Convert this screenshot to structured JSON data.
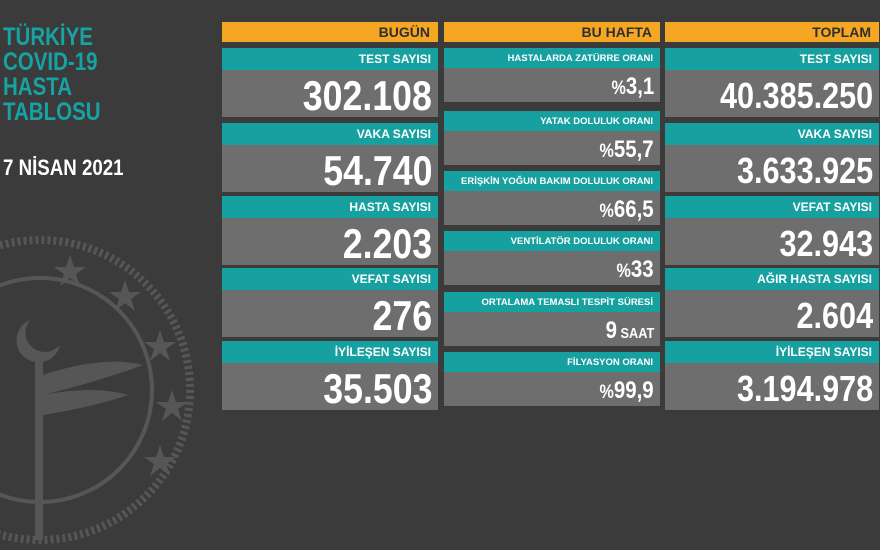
{
  "title": {
    "lines": [
      "TÜRKİYE",
      "COVID-19",
      "HASTA",
      "TABLOSU"
    ],
    "date": "7 NİSAN 2021"
  },
  "colors": {
    "background": "#3b3b3b",
    "teal": "#17a0a0",
    "orange": "#f5a623",
    "value_bg": "#6e6e6e"
  },
  "today": {
    "header": "BUGÜN",
    "items": [
      {
        "label": "TEST SAYISI",
        "value": "302.108"
      },
      {
        "label": "VAKA SAYISI",
        "value": "54.740"
      },
      {
        "label": "HASTA SAYISI",
        "value": "2.203"
      },
      {
        "label": "VEFAT SAYISI",
        "value": "276"
      },
      {
        "label": "İYİLEŞEN SAYISI",
        "value": "35.503"
      }
    ]
  },
  "week": {
    "header": "BU HAFTA",
    "items": [
      {
        "label": "HASTALARDA ZATÜRRE ORANI",
        "prefix": "%",
        "value": "3,1",
        "unit": ""
      },
      {
        "label": "YATAK DOLULUK ORANI",
        "prefix": "%",
        "value": "55,7",
        "unit": ""
      },
      {
        "label": "ERİŞKİN YOĞUN BAKIM DOLULUK ORANI",
        "prefix": "%",
        "value": "66,5",
        "unit": ""
      },
      {
        "label": "VENTİLATÖR DOLULUK ORANI",
        "prefix": "%",
        "value": "33",
        "unit": ""
      },
      {
        "label": "ORTALAMA TEMASLI TESPİT SÜRESİ",
        "prefix": "",
        "value": "9",
        "unit": " SAAT"
      },
      {
        "label": "FİLYASYON ORANI",
        "prefix": "%",
        "value": "99,9",
        "unit": ""
      }
    ]
  },
  "total": {
    "header": "TOPLAM",
    "items": [
      {
        "label": "TEST SAYISI",
        "value": "40.385.250"
      },
      {
        "label": "VAKA SAYISI",
        "value": "3.633.925"
      },
      {
        "label": "VEFAT SAYISI",
        "value": "32.943"
      },
      {
        "label": "AĞIR HASTA SAYISI",
        "value": "2.604"
      },
      {
        "label": "İYİLEŞEN SAYISI",
        "value": "3.194.978"
      }
    ]
  }
}
